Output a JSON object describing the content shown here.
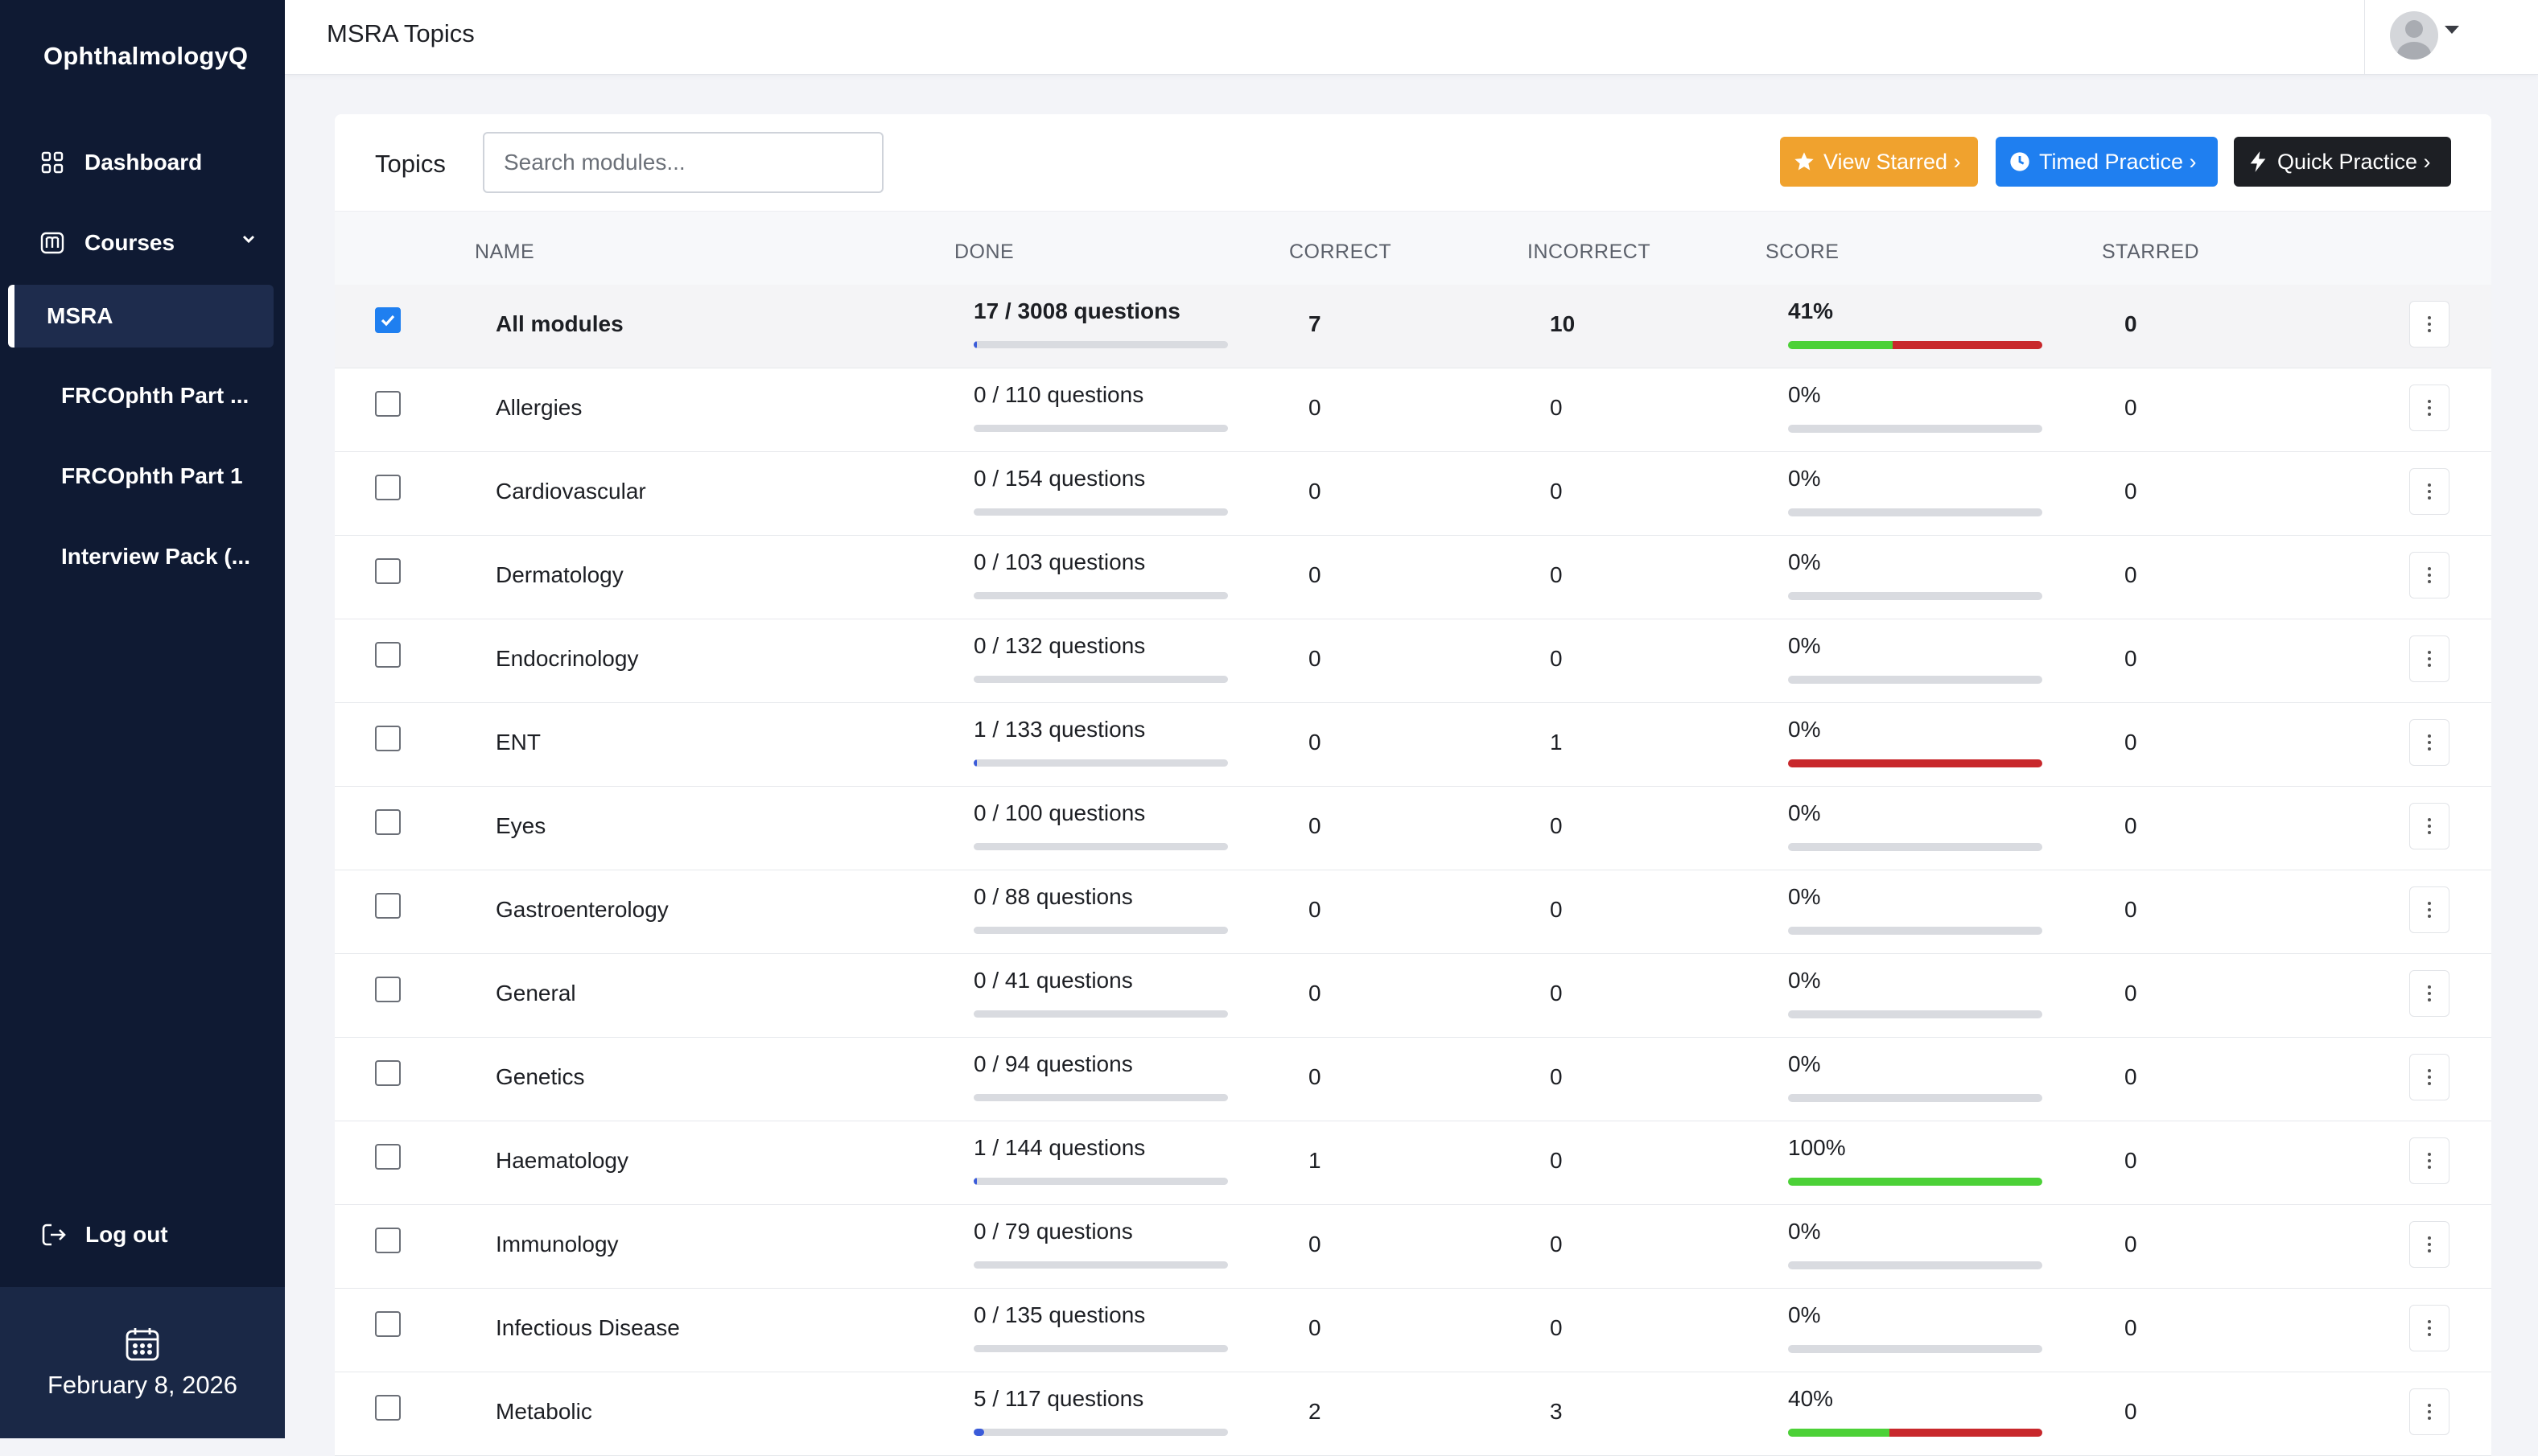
{
  "sidebar": {
    "brand": "OphthalmologyQ",
    "nav": {
      "dashboard": "Dashboard",
      "courses": "Courses"
    },
    "active_course": "MSRA",
    "courses": [
      {
        "label": "FRCOphth Part ..."
      },
      {
        "label": "FRCOphth Part 1"
      },
      {
        "label": "Interview Pack (..."
      }
    ],
    "logout": "Log out",
    "date": "February 8, 2026"
  },
  "header": {
    "title": "MSRA Topics"
  },
  "topics": {
    "title": "Topics",
    "search_placeholder": "Search modules...",
    "buttons": {
      "view_starred": "View Starred ›",
      "timed_practice": "Timed Practice ›",
      "quick_practice": "Quick Practice ›"
    },
    "columns": {
      "name": "NAME",
      "done": "DONE",
      "correct": "CORRECT",
      "incorrect": "INCORRECT",
      "score": "SCORE",
      "starred": "STARRED"
    },
    "rows": [
      {
        "name": "All modules",
        "done": "17 / 3008 questions",
        "done_fraction": 0.0057,
        "correct": "7",
        "incorrect": "10",
        "score": "41%",
        "score_correct_frac": 0.41,
        "score_incorrect_frac": 0.59,
        "starred": "0",
        "checked": true
      },
      {
        "name": "Allergies",
        "done": "0 / 110 questions",
        "done_fraction": 0,
        "correct": "0",
        "incorrect": "0",
        "score": "0%",
        "score_correct_frac": 0,
        "score_incorrect_frac": 0,
        "starred": "0",
        "checked": false
      },
      {
        "name": "Cardiovascular",
        "done": "0 / 154 questions",
        "done_fraction": 0,
        "correct": "0",
        "incorrect": "0",
        "score": "0%",
        "score_correct_frac": 0,
        "score_incorrect_frac": 0,
        "starred": "0",
        "checked": false
      },
      {
        "name": "Dermatology",
        "done": "0 / 103 questions",
        "done_fraction": 0,
        "correct": "0",
        "incorrect": "0",
        "score": "0%",
        "score_correct_frac": 0,
        "score_incorrect_frac": 0,
        "starred": "0",
        "checked": false
      },
      {
        "name": "Endocrinology",
        "done": "0 / 132 questions",
        "done_fraction": 0,
        "correct": "0",
        "incorrect": "0",
        "score": "0%",
        "score_correct_frac": 0,
        "score_incorrect_frac": 0,
        "starred": "0",
        "checked": false
      },
      {
        "name": "ENT",
        "done": "1 / 133 questions",
        "done_fraction": 0.0075,
        "correct": "0",
        "incorrect": "1",
        "score": "0%",
        "score_correct_frac": 0,
        "score_incorrect_frac": 1,
        "starred": "0",
        "checked": false
      },
      {
        "name": "Eyes",
        "done": "0 / 100 questions",
        "done_fraction": 0,
        "correct": "0",
        "incorrect": "0",
        "score": "0%",
        "score_correct_frac": 0,
        "score_incorrect_frac": 0,
        "starred": "0",
        "checked": false
      },
      {
        "name": "Gastroenterology",
        "done": "0 / 88 questions",
        "done_fraction": 0,
        "correct": "0",
        "incorrect": "0",
        "score": "0%",
        "score_correct_frac": 0,
        "score_incorrect_frac": 0,
        "starred": "0",
        "checked": false
      },
      {
        "name": "General",
        "done": "0 / 41 questions",
        "done_fraction": 0,
        "correct": "0",
        "incorrect": "0",
        "score": "0%",
        "score_correct_frac": 0,
        "score_incorrect_frac": 0,
        "starred": "0",
        "checked": false
      },
      {
        "name": "Genetics",
        "done": "0 / 94 questions",
        "done_fraction": 0,
        "correct": "0",
        "incorrect": "0",
        "score": "0%",
        "score_correct_frac": 0,
        "score_incorrect_frac": 0,
        "starred": "0",
        "checked": false
      },
      {
        "name": "Haematology",
        "done": "1 / 144 questions",
        "done_fraction": 0.0069,
        "correct": "1",
        "incorrect": "0",
        "score": "100%",
        "score_correct_frac": 1,
        "score_incorrect_frac": 0,
        "starred": "0",
        "checked": false
      },
      {
        "name": "Immunology",
        "done": "0 / 79 questions",
        "done_fraction": 0,
        "correct": "0",
        "incorrect": "0",
        "score": "0%",
        "score_correct_frac": 0,
        "score_incorrect_frac": 0,
        "starred": "0",
        "checked": false
      },
      {
        "name": "Infectious Disease",
        "done": "0 / 135 questions",
        "done_fraction": 0,
        "correct": "0",
        "incorrect": "0",
        "score": "0%",
        "score_correct_frac": 0,
        "score_incorrect_frac": 0,
        "starred": "0",
        "checked": false
      },
      {
        "name": "Metabolic",
        "done": "5 / 117 questions",
        "done_fraction": 0.0427,
        "correct": "2",
        "incorrect": "3",
        "score": "40%",
        "score_correct_frac": 0.4,
        "score_incorrect_frac": 0.6,
        "starred": "0",
        "checked": false
      }
    ]
  },
  "icons": {
    "dashboard": "grid-icon",
    "courses": "book-icon",
    "logout": "logout-icon",
    "calendar": "calendar-icon",
    "starred": "star-icon",
    "timed": "clock-icon",
    "quick": "bolt-icon",
    "row_menu": "kebab-icon"
  },
  "colors": {
    "sidebar_bg": "#0f1a33",
    "starred_btn": "#f0a22e",
    "timed_btn": "#1f7ff0",
    "quick_btn": "#1d1f24",
    "score_correct": "#4cd137",
    "score_incorrect": "#c8282c",
    "done_fill": "#3a5bd9"
  }
}
